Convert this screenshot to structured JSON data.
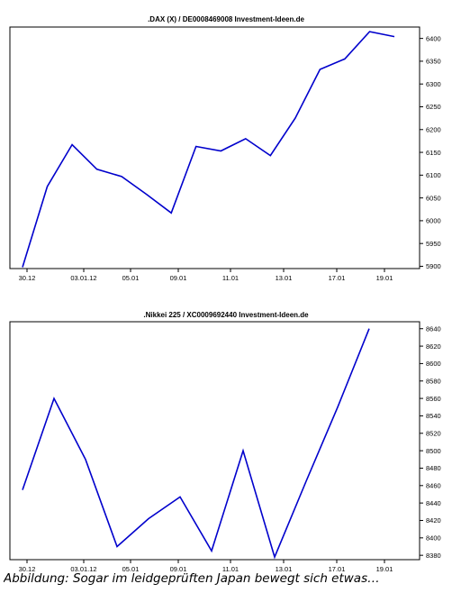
{
  "caption": "Abbildung: Sogar im leidgeprüften Japan bewegt sich etwas…",
  "chart_data": [
    {
      "type": "line",
      "title": ".DAX (X) / DE0008469008 Investment-Ideen.de",
      "xlabel": "",
      "ylabel": "",
      "x_tick_labels": [
        "30.12",
        "03.01.12",
        "05.01",
        "09.01",
        "11.01",
        "13.01",
        "17.01",
        "19.01"
      ],
      "y_ticks": [
        5900,
        5950,
        6000,
        6050,
        6100,
        6150,
        6200,
        6250,
        6300,
        6350,
        6400
      ],
      "ylim": [
        5895,
        6425
      ],
      "grid": false,
      "series": [
        {
          "values": [
            5898,
            6075,
            6167,
            6113,
            6097,
            6058,
            6017,
            6163,
            6153,
            6180,
            6143,
            6225,
            6332,
            6355,
            6415,
            6404
          ],
          "color": "#0000cc"
        }
      ]
    },
    {
      "type": "line",
      "title": ".Nikkei 225 / XC0009692440 Investment-Ideen.de",
      "xlabel": "",
      "ylabel": "",
      "x_tick_labels": [
        "30.12",
        "03.01.12",
        "05.01",
        "09.01",
        "11.01",
        "13.01",
        "17.01",
        "19.01"
      ],
      "y_ticks": [
        8380,
        8400,
        8420,
        8440,
        8460,
        8480,
        8500,
        8520,
        8540,
        8560,
        8580,
        8600,
        8620,
        8640
      ],
      "ylim": [
        8375,
        8648
      ],
      "grid": false,
      "series": [
        {
          "values": [
            8455,
            8560,
            8490,
            8390,
            8422,
            8447,
            8385,
            8500,
            8378,
            8465,
            8550,
            8640
          ],
          "color": "#0000cc"
        }
      ]
    }
  ]
}
